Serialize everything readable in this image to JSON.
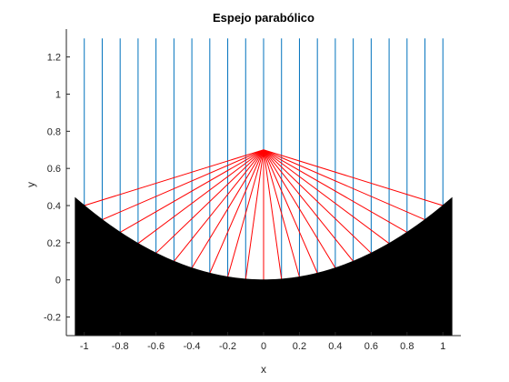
{
  "chart_data": {
    "type": "line",
    "title": "Espejo parabólico",
    "xlabel": "x",
    "ylabel": "y",
    "xlim": [
      -1.1,
      1.1
    ],
    "ylim": [
      -0.3,
      1.35
    ],
    "x_ticks": [
      -1,
      -0.8,
      -0.6,
      -0.4,
      -0.2,
      0,
      0.2,
      0.4,
      0.6,
      0.8,
      1
    ],
    "x_tick_labels": [
      "-1",
      "-0.8",
      "-0.6",
      "-0.4",
      "-0.2",
      "0",
      "0.2",
      "0.4",
      "0.6",
      "0.8",
      "1"
    ],
    "y_ticks": [
      -0.2,
      0,
      0.2,
      0.4,
      0.6,
      0.8,
      1,
      1.2
    ],
    "y_tick_labels": [
      "-0.2",
      "0",
      "0.2",
      "0.4",
      "0.6",
      "0.8",
      "1",
      "1.2"
    ],
    "grid": false,
    "mirror": {
      "equation_coefficient": 0.4,
      "x_range": [
        -1.05,
        1.05
      ],
      "bottom": -0.3,
      "color": "#000000"
    },
    "focus": [
      0,
      0.7
    ],
    "incident_rays": {
      "x": [
        -1,
        -0.9,
        -0.8,
        -0.7,
        -0.6,
        -0.5,
        -0.4,
        -0.3,
        -0.2,
        -0.1,
        0,
        0.1,
        0.2,
        0.3,
        0.4,
        0.5,
        0.6,
        0.7,
        0.8,
        0.9,
        1
      ],
      "y_top": 1.3,
      "color": "#0072BD"
    },
    "reflected_rays": {
      "color": "#FF0000"
    }
  }
}
